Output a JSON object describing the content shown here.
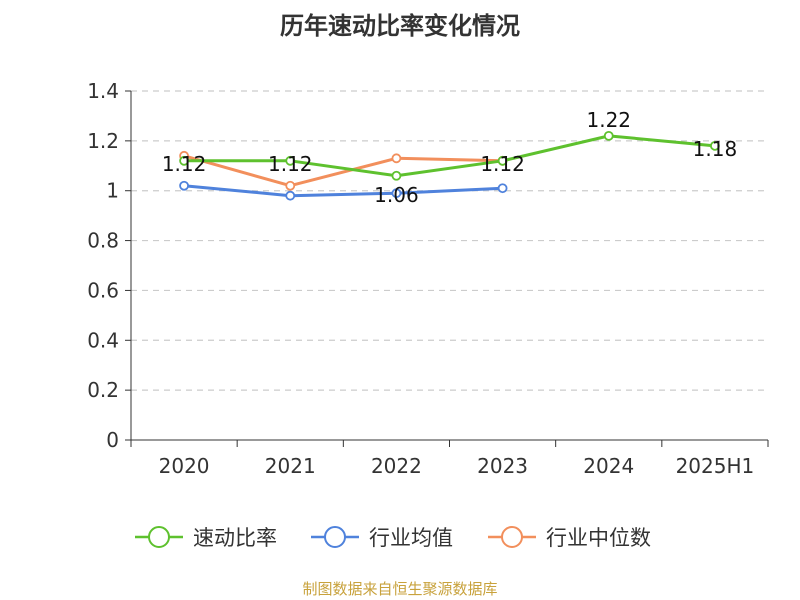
{
  "title": "历年速动比率变化情况",
  "source": "制图数据来自恒生聚源数据库",
  "chart_data": {
    "type": "line",
    "title": "历年速动比率变化情况",
    "categories": [
      "2020",
      "2021",
      "2022",
      "2023",
      "2024",
      "2025H1"
    ],
    "yticks": [
      "0",
      "0.2",
      "0.4",
      "0.6",
      "0.8",
      "1",
      "1.2",
      "1.4"
    ],
    "ylim": [
      0,
      1.4
    ],
    "grid": true,
    "legend_position": "bottom",
    "series": [
      {
        "name": "速动比率",
        "color": "#5ec12e",
        "values": [
          1.12,
          1.12,
          1.06,
          1.12,
          1.22,
          1.18
        ],
        "labels": [
          "1.12",
          "1.12",
          "1.06",
          "1.12",
          "1.22",
          "1.18"
        ]
      },
      {
        "name": "行业均值",
        "color": "#4f82dc",
        "values": [
          1.02,
          0.98,
          0.99,
          1.01,
          null,
          null
        ]
      },
      {
        "name": "行业中位数",
        "color": "#f28f5c",
        "values": [
          1.14,
          1.02,
          1.13,
          1.12,
          null,
          null
        ]
      }
    ]
  }
}
